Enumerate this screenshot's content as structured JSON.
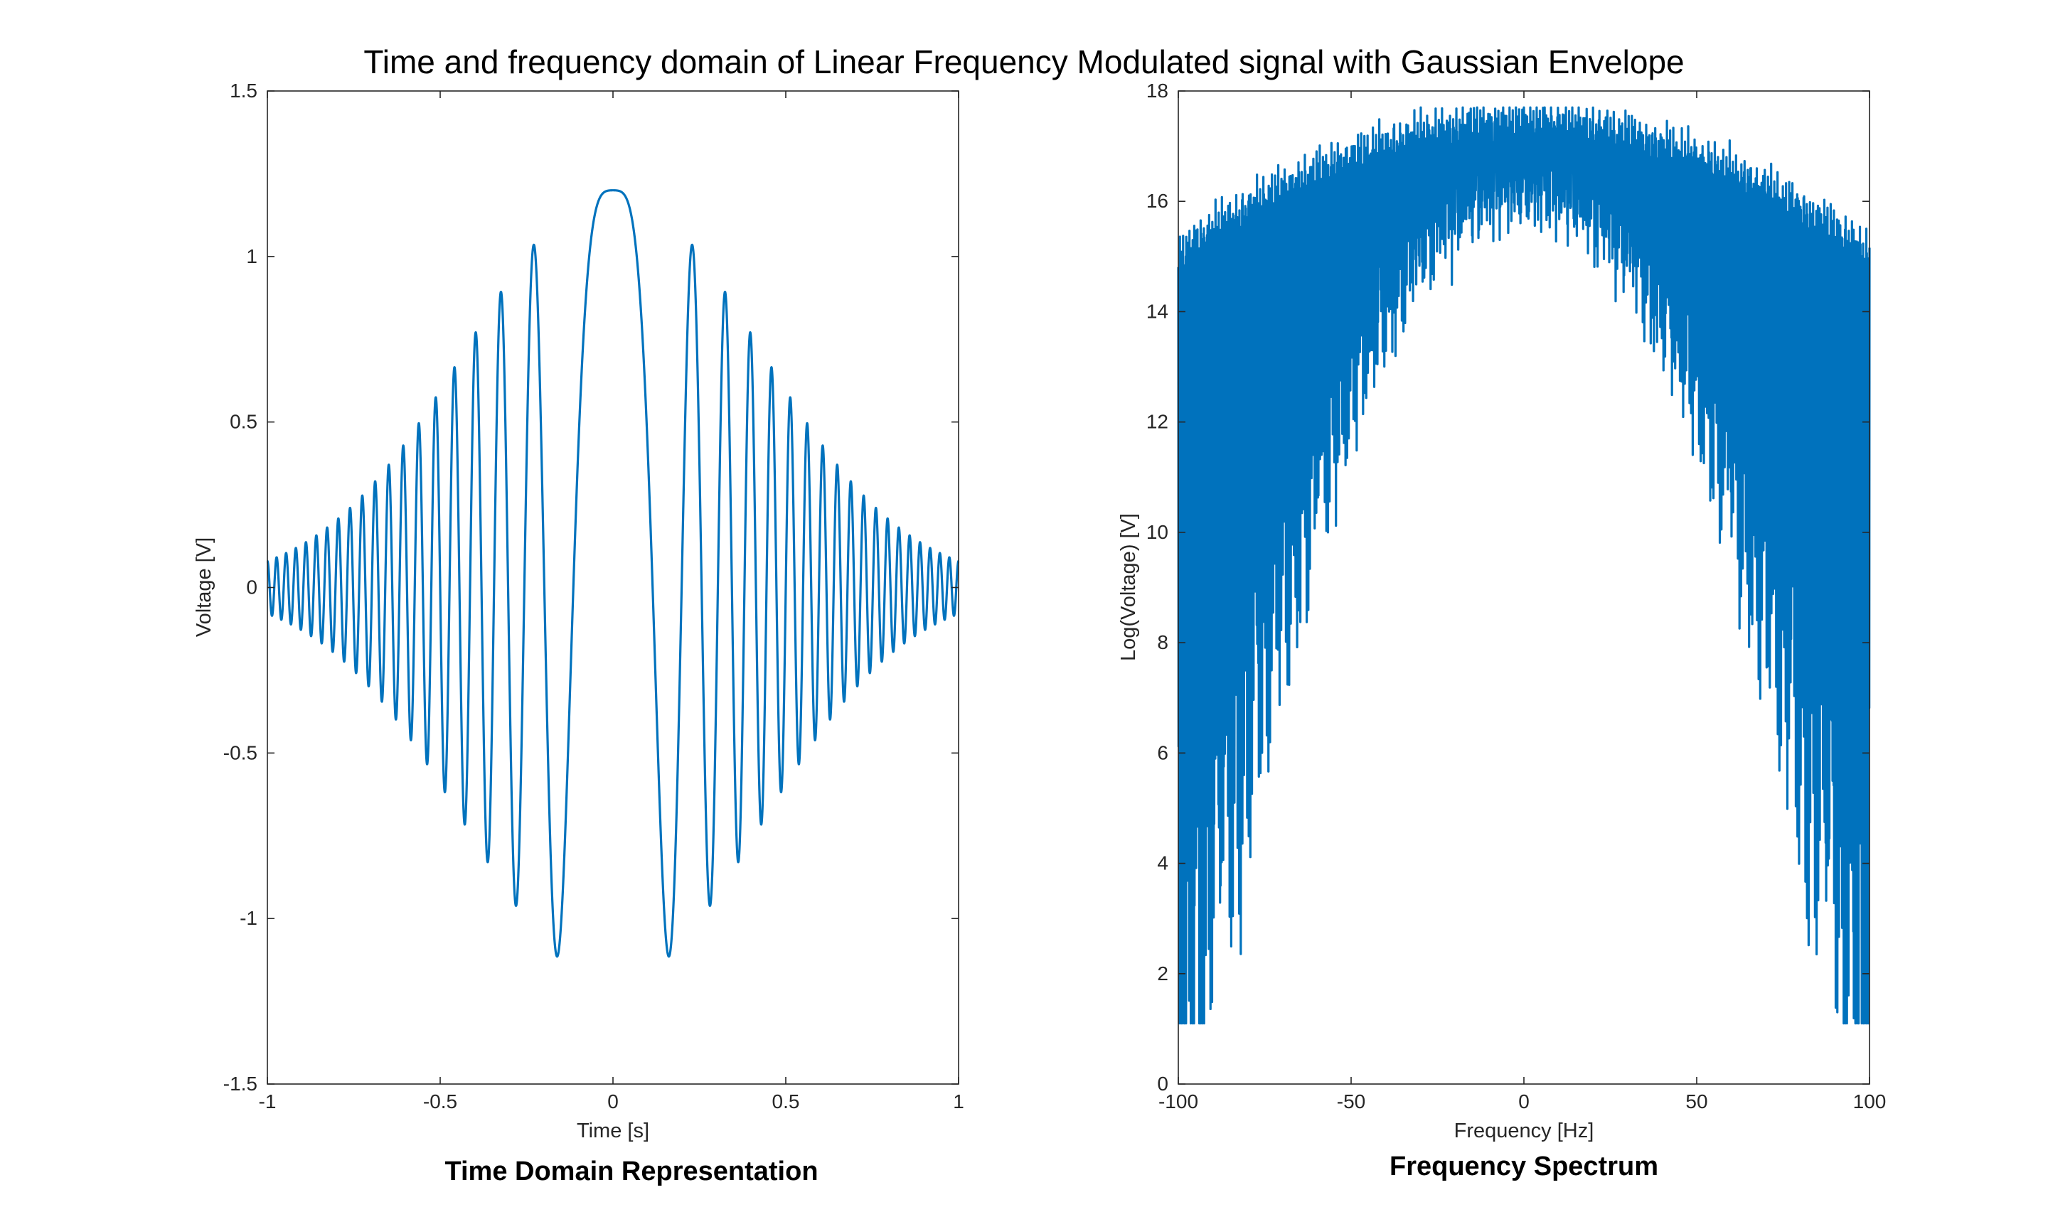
{
  "title": "Time and frequency domain of Linear Frequency Modulated signal with Gaussian Envelope",
  "colors": {
    "line": "#0072BD",
    "axes": "#262626",
    "background": "#ffffff"
  },
  "chart_data": [
    {
      "type": "line",
      "panel_title": "Time Domain Representation",
      "xlabel": "Time [s]",
      "ylabel": "Voltage [V]",
      "xlim": [
        -1,
        1
      ],
      "ylim": [
        -1.5,
        1.5
      ],
      "xticks": [
        -1,
        -0.5,
        0,
        0.5,
        1
      ],
      "xtick_labels": [
        "-1",
        "-0.5",
        "0",
        "0.5",
        "1"
      ],
      "yticks": [
        -1.5,
        -1,
        -0.5,
        0,
        0.5,
        1,
        1.5
      ],
      "ytick_labels": [
        "-1.5",
        "-1",
        "-0.5",
        "0",
        "0.5",
        "1",
        "1.5"
      ],
      "grid": false,
      "series": [
        {
          "signal": "linear-chirp-gaussian-envelope",
          "x_range": [
            -1,
            1
          ],
          "peak": 1.19,
          "envelope_at_edges": 0.06,
          "min_at_t_pm_0.07": -1.17
        }
      ]
    },
    {
      "type": "line",
      "panel_title": "Frequency Spectrum",
      "xlabel": "Frequency [Hz]",
      "ylabel": "Log(Voltage) [V]",
      "xlim": [
        -100,
        100
      ],
      "ylim": [
        0,
        18
      ],
      "xticks": [
        -100,
        -50,
        0,
        50,
        100
      ],
      "xtick_labels": [
        "-100",
        "-50",
        "0",
        "50",
        "100"
      ],
      "yticks": [
        0,
        2,
        4,
        6,
        8,
        10,
        12,
        14,
        16,
        18
      ],
      "ytick_labels": [
        "0",
        "2",
        "4",
        "6",
        "8",
        "10",
        "12",
        "14",
        "16",
        "18"
      ],
      "grid": false,
      "series": [
        {
          "signal": "oscillating-log-magnitude-spectrum",
          "x_range": [
            -100,
            100
          ],
          "max_value": 17.7,
          "center_band": [
            16.2,
            17.6
          ],
          "value_at_edges": 11.5,
          "min_value": 1.1
        }
      ]
    }
  ]
}
